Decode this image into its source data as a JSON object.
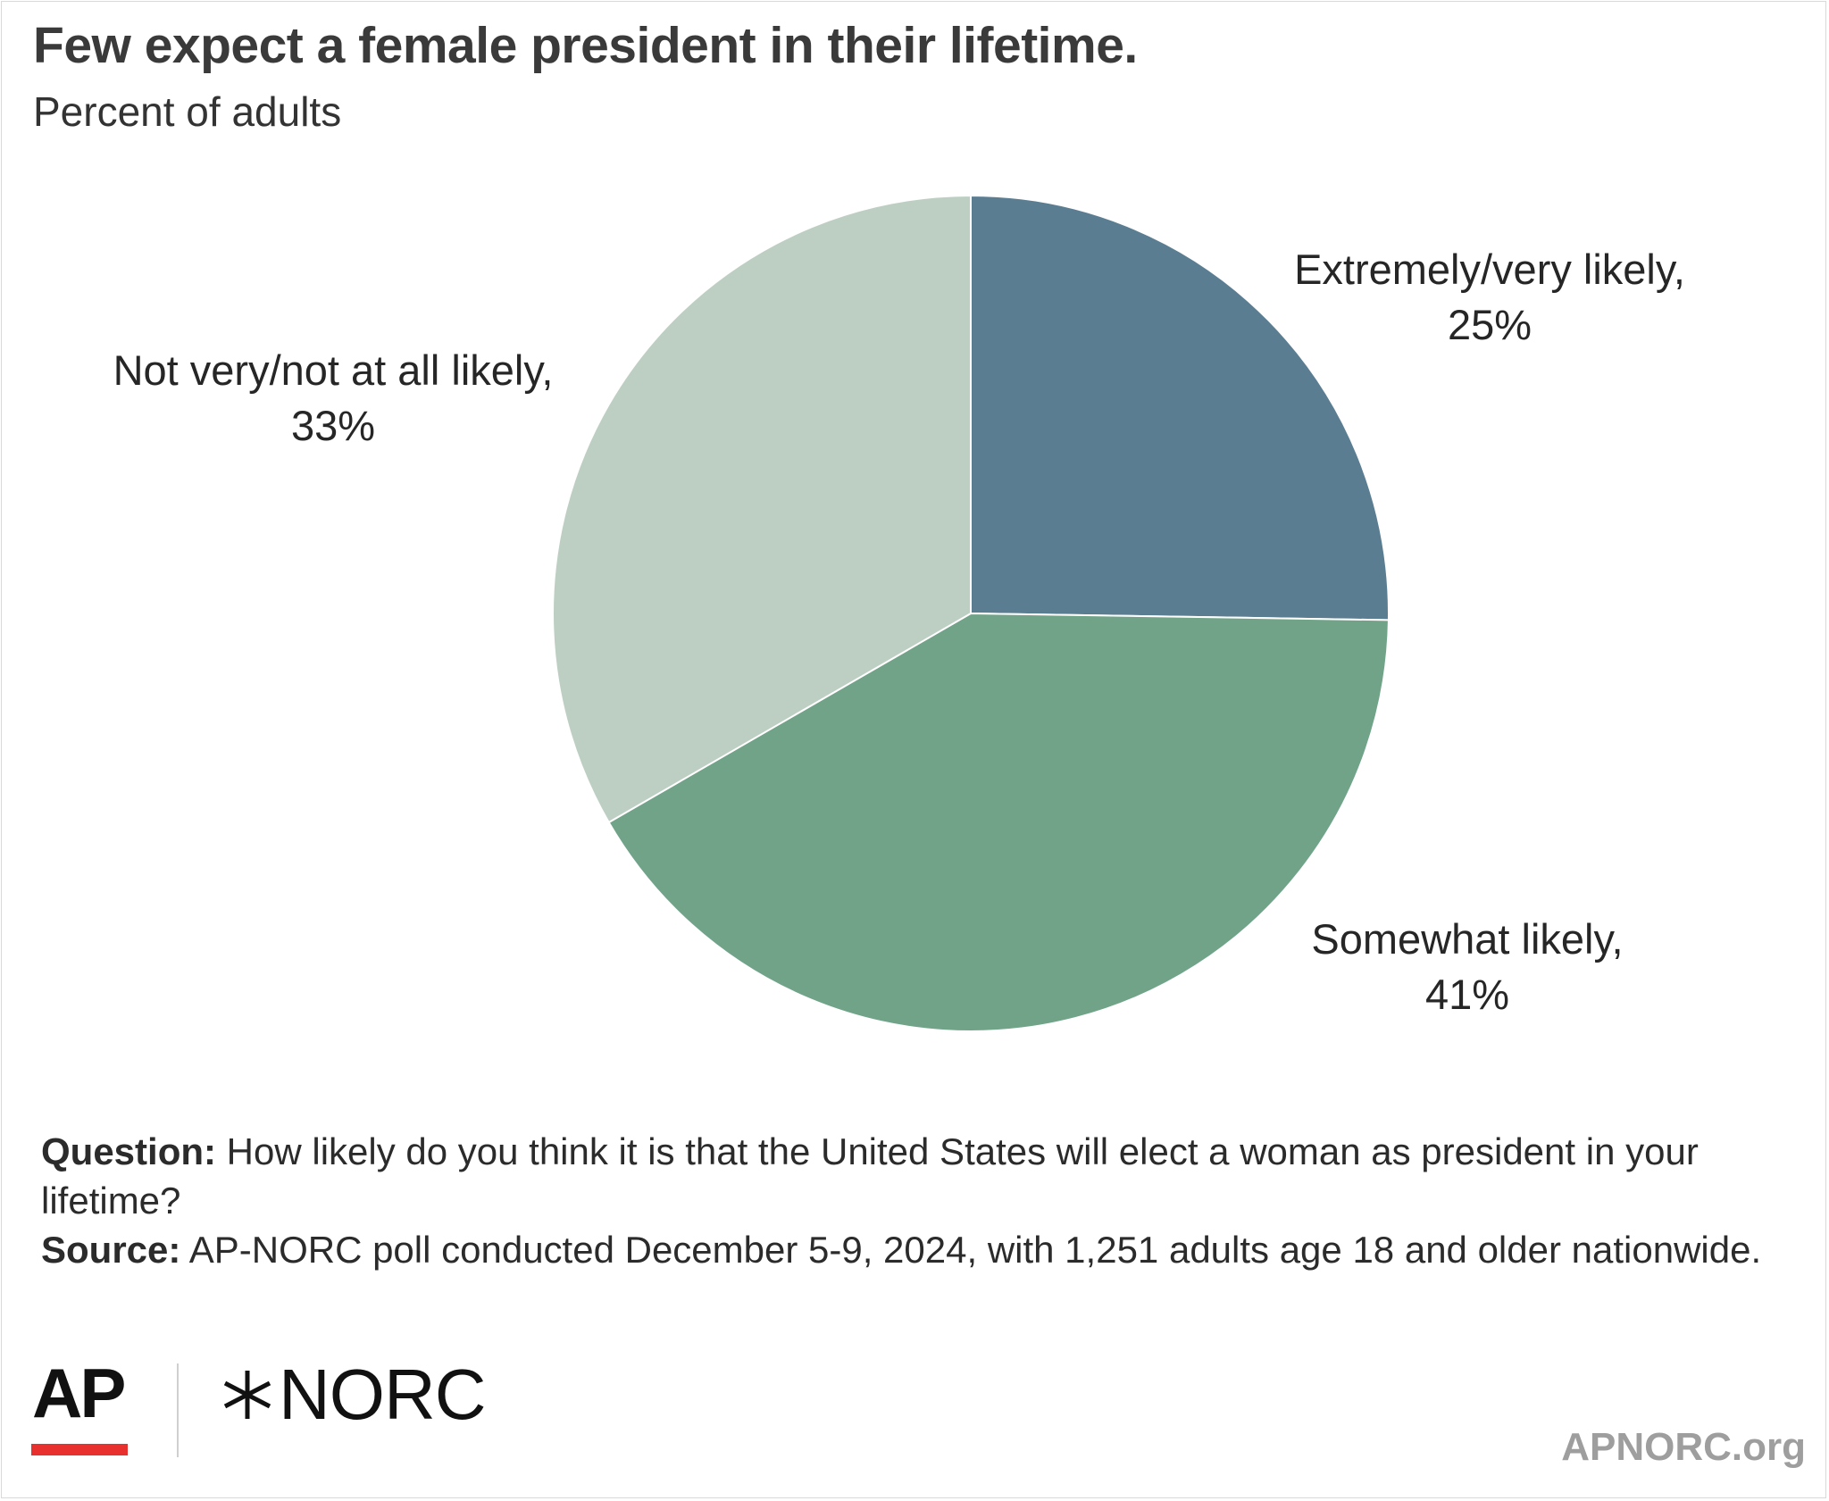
{
  "title": "Few expect a female president in their lifetime.",
  "subtitle": "Percent of adults",
  "chart_data": {
    "type": "pie",
    "title": "Few expect a female president in their lifetime.",
    "subtitle": "Percent of adults",
    "unit": "%",
    "start": "12 o'clock, clockwise",
    "slices": [
      {
        "label": "Extremely/very likely,",
        "value": 25,
        "value_label": "25%",
        "color": "#5b7d92"
      },
      {
        "label": "Somewhat likely,",
        "value": 41,
        "value_label": "41%",
        "color": "#70a388"
      },
      {
        "label": "Not very/not at all likely,",
        "value": 33,
        "value_label": "33%",
        "color": "#bdcfc3"
      }
    ]
  },
  "notes": {
    "question_label": "Question:",
    "question_text": " How likely do you think it is that the United States will elect a woman as president in your lifetime?",
    "source_label": "Source:",
    "source_text": " AP-NORC poll conducted December 5-9, 2024, with 1,251 adults age 18 and older nationwide."
  },
  "logos": {
    "ap": "AP",
    "norc": "NORC",
    "ap_bar_color": "#e8302e",
    "norc_icon": "star-icon"
  },
  "site": "APNORC.org"
}
